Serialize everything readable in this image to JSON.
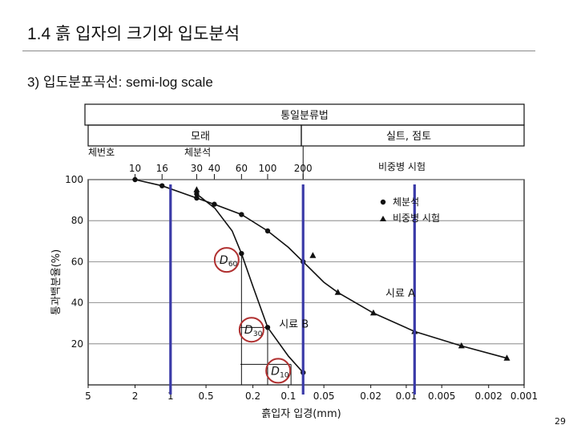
{
  "slide": {
    "title": "1.4 흙 입자의 크기와 입도분석",
    "subtitle": "3)  입도분포곡선: semi-log scale",
    "page_number": "29"
  },
  "colors": {
    "blue_line": "#3a3aa8",
    "highlight_circle": "#b03030",
    "curve": "#111111"
  },
  "chart_data": {
    "type": "scatter",
    "x_scale": "log",
    "x_reversed": true,
    "xlim": [
      5,
      0.001
    ],
    "ylim": [
      0,
      100
    ],
    "xlabel": "흙입자 입경(mm)",
    "ylabel": "통과백분율(%)",
    "x_tick_labels": [
      "5",
      "2",
      "1",
      "0.5",
      "0.2",
      "0.1",
      "0.05",
      "0.02",
      "0.01",
      "0.005",
      "0.002",
      "0.001"
    ],
    "x_ticks": [
      5,
      2,
      1,
      0.5,
      0.2,
      0.1,
      0.05,
      0.02,
      0.01,
      0.005,
      0.002,
      0.001
    ],
    "y_ticks": [
      20,
      40,
      60,
      80,
      100
    ],
    "header": {
      "classification": "통일분류법",
      "sand": "모래",
      "silt_clay": "실트, 점토",
      "sieve_number_label": "체번호",
      "sieve_analysis_label": "체분석",
      "hydrometer_label": "비중병 시험",
      "sieve_numbers": [
        {
          "label": "10",
          "x": 2.0
        },
        {
          "label": "16",
          "x": 1.18
        },
        {
          "label": "30",
          "x": 0.6
        },
        {
          "label": "40",
          "x": 0.425
        },
        {
          "label": "60",
          "x": 0.25
        },
        {
          "label": "100",
          "x": 0.15
        },
        {
          "label": "200",
          "x": 0.075
        }
      ],
      "boundary_x": 0.075
    },
    "legend": {
      "placement": "right",
      "items": [
        {
          "marker": "circle",
          "label": "체분석"
        },
        {
          "marker": "triangle",
          "label": "비중병 시험"
        }
      ]
    },
    "series": [
      {
        "name": "시료 A",
        "points_sieve": [
          {
            "x": 2.0,
            "y": 100
          },
          {
            "x": 1.18,
            "y": 97
          },
          {
            "x": 0.6,
            "y": 91
          },
          {
            "x": 0.425,
            "y": 88
          },
          {
            "x": 0.25,
            "y": 83
          },
          {
            "x": 0.15,
            "y": 75
          },
          {
            "x": 0.075,
            "y": 60
          }
        ],
        "points_hydrometer": [
          {
            "x": 0.062,
            "y": 63
          },
          {
            "x": 0.038,
            "y": 45
          },
          {
            "x": 0.019,
            "y": 35
          },
          {
            "x": 0.0085,
            "y": 26
          },
          {
            "x": 0.0034,
            "y": 19
          },
          {
            "x": 0.0014,
            "y": 13
          }
        ],
        "curve": [
          {
            "x": 2.0,
            "y": 100
          },
          {
            "x": 1.18,
            "y": 97
          },
          {
            "x": 0.6,
            "y": 91
          },
          {
            "x": 0.425,
            "y": 88
          },
          {
            "x": 0.25,
            "y": 83
          },
          {
            "x": 0.15,
            "y": 75
          },
          {
            "x": 0.1,
            "y": 67
          },
          {
            "x": 0.075,
            "y": 60
          },
          {
            "x": 0.05,
            "y": 50
          },
          {
            "x": 0.038,
            "y": 45
          },
          {
            "x": 0.019,
            "y": 35
          },
          {
            "x": 0.0085,
            "y": 26
          },
          {
            "x": 0.0034,
            "y": 19
          },
          {
            "x": 0.0014,
            "y": 13
          }
        ]
      },
      {
        "name": "시료 B",
        "points_sieve": [
          {
            "x": 0.6,
            "y": 93
          },
          {
            "x": 0.25,
            "y": 64
          },
          {
            "x": 0.15,
            "y": 28
          },
          {
            "x": 0.075,
            "y": 6
          }
        ],
        "points_hydrometer": [
          {
            "x": 0.6,
            "y": 95
          }
        ],
        "curve": [
          {
            "x": 0.6,
            "y": 93
          },
          {
            "x": 0.42,
            "y": 86
          },
          {
            "x": 0.3,
            "y": 75
          },
          {
            "x": 0.25,
            "y": 64
          },
          {
            "x": 0.2,
            "y": 48
          },
          {
            "x": 0.15,
            "y": 28
          },
          {
            "x": 0.1,
            "y": 14
          },
          {
            "x": 0.075,
            "y": 6
          }
        ]
      }
    ],
    "annotations": [
      {
        "text": "D",
        "sub": "60",
        "x": 0.26,
        "y": 64
      },
      {
        "text": "D",
        "sub": "30",
        "x": 0.16,
        "y": 30
      },
      {
        "text": "D",
        "sub": "10",
        "x": 0.095,
        "y": 10
      }
    ],
    "series_labels": [
      {
        "text": "시료 A",
        "x": 0.015,
        "y": 43
      },
      {
        "text": "시료 B",
        "x": 0.12,
        "y": 28
      }
    ],
    "guide_lines": [
      {
        "x": 0.25,
        "y": 64
      },
      {
        "x": 0.15,
        "y": 28
      },
      {
        "x": 0.095,
        "y": 10
      }
    ],
    "blue_lines": [
      1.0,
      0.075,
      0.0085
    ]
  }
}
